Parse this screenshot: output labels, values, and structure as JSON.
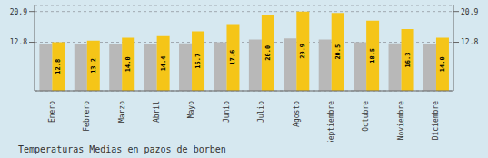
{
  "chart_data": {
    "type": "bar",
    "title": "Temperaturas Medias en pazos de borben",
    "categories": [
      "Enero",
      "Febrero",
      "Marzo",
      "Abril",
      "Mayo",
      "Junio",
      "Julio",
      "Agosto",
      "Septiembre",
      "Octubre",
      "Noviembre",
      "Diciembre"
    ],
    "series": [
      {
        "color": "#B8B8B8",
        "values": [
          12.2,
          12.2,
          12.4,
          12.2,
          12.5,
          12.8,
          13.5,
          13.8,
          13.5,
          12.8,
          12.5,
          12.2
        ]
      },
      {
        "color": "#F5C518",
        "values": [
          12.8,
          13.2,
          14.0,
          14.4,
          15.7,
          17.6,
          20.0,
          20.9,
          20.5,
          18.5,
          16.3,
          14.0
        ],
        "data_labels": true
      }
    ],
    "ylim": [
      0,
      22.5
    ],
    "yticks": [
      12.8,
      20.9
    ],
    "y2lim": [
      0,
      22.5
    ],
    "y2ticks": [
      12.8,
      20.9
    ],
    "grid": true
  }
}
